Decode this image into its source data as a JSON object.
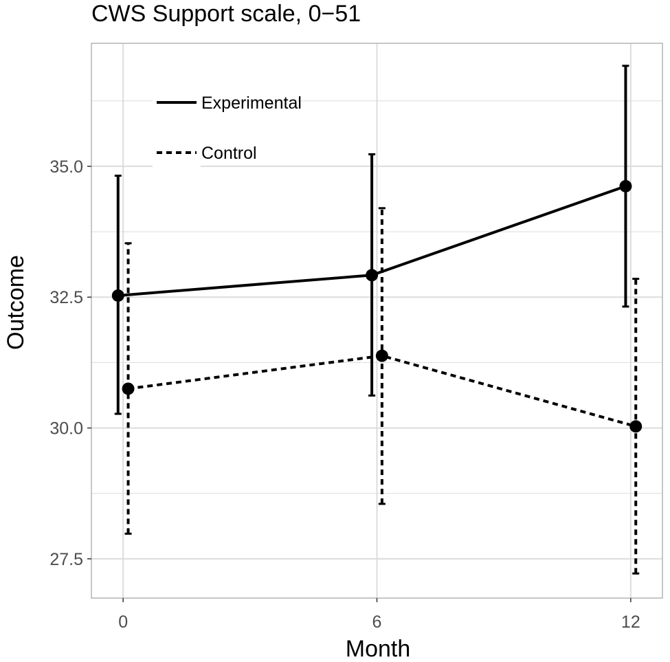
{
  "chart_data": {
    "type": "line",
    "title": "CWS Support scale, 0−51",
    "xlabel": "Month",
    "ylabel": "Outcome",
    "x": [
      0,
      6,
      12
    ],
    "x_tick_labels": [
      "0",
      "6",
      "12"
    ],
    "y_ticks": [
      27.5,
      30.0,
      32.5,
      35.0
    ],
    "y_tick_labels": [
      "27.5",
      "30.0",
      "32.5",
      "35.0"
    ],
    "xlim": [
      -0.75,
      12.75
    ],
    "ylim": [
      26.75,
      37.35
    ],
    "grid": true,
    "legend_position": "top-left",
    "series": [
      {
        "name": "Experimental",
        "line_style": "solid",
        "values": [
          32.53,
          32.92,
          34.62
        ],
        "lower": [
          30.27,
          30.62,
          32.32
        ],
        "upper": [
          34.82,
          35.23,
          36.92
        ]
      },
      {
        "name": "Control",
        "line_style": "dashed",
        "values": [
          30.75,
          31.38,
          30.03
        ],
        "lower": [
          27.98,
          28.55,
          27.22
        ],
        "upper": [
          33.53,
          34.2,
          32.85
        ]
      }
    ],
    "colors": {
      "line": "#000000",
      "grid": "#dcdcdc",
      "panel_border": "#b3b3b3",
      "tick_text": "#4d4d4d"
    }
  }
}
